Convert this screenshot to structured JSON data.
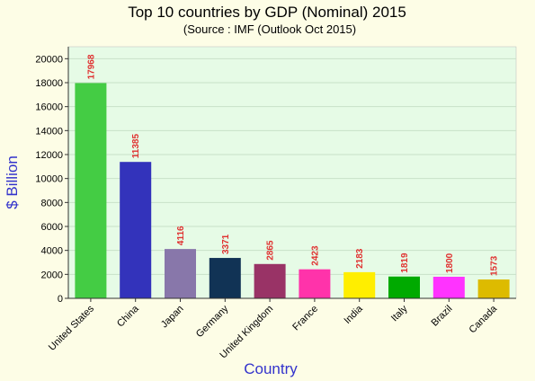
{
  "chart_data": {
    "type": "bar",
    "title": "Top 10 countries by GDP (Nominal) 2015",
    "subtitle": "(Source : IMF (Outlook Oct 2015)",
    "xlabel": "Country",
    "ylabel": "$ Billion",
    "ylim": [
      0,
      21000
    ],
    "yticks": [
      0,
      2000,
      4000,
      6000,
      8000,
      10000,
      12000,
      14000,
      16000,
      18000,
      20000
    ],
    "grid": true,
    "categories": [
      "United States",
      "China",
      "Japan",
      "Germany",
      "United Kingdom",
      "France",
      "India",
      "Italy",
      "Brazil",
      "Canada"
    ],
    "values": [
      17968,
      11385,
      4116,
      3371,
      2865,
      2423,
      2183,
      1819,
      1800,
      1573
    ],
    "colors": [
      "#44cc44",
      "#3333bb",
      "#8877aa",
      "#113355",
      "#993366",
      "#ff33aa",
      "#ffee00",
      "#00aa00",
      "#ff33ff",
      "#ddbb00"
    ],
    "plot_background": "#e6fbe6",
    "page_background": "#fdfde6",
    "data_label_color": "#e03030",
    "axis_label_color": "#3333cc"
  }
}
